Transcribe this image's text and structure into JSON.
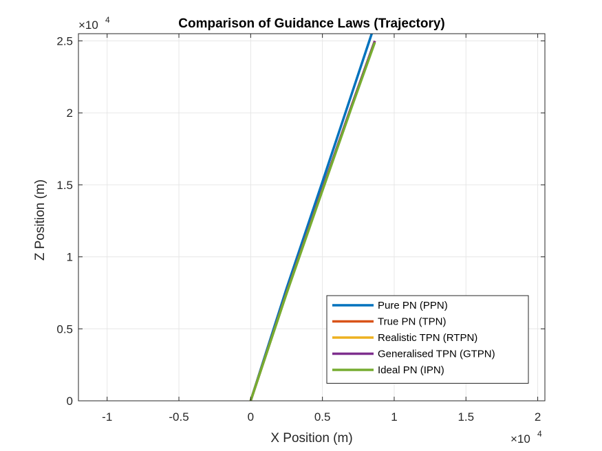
{
  "chart_data": {
    "type": "line",
    "title": "Comparison of Guidance Laws (Trajectory)",
    "xlabel": "X Position (m)",
    "ylabel": "Z Position (m)",
    "x_exponent": {
      "base": "×10",
      "power": "4"
    },
    "y_exponent": {
      "base": "×10",
      "power": "4"
    },
    "xlim": [
      -1.2,
      2.05
    ],
    "ylim": [
      0,
      2.55
    ],
    "x_ticks": [
      -1,
      -0.5,
      0,
      0.5,
      1,
      1.5,
      2
    ],
    "x_tick_labels": [
      "-1",
      "-0.5",
      "0",
      "0.5",
      "1",
      "1.5",
      "2"
    ],
    "y_ticks": [
      0,
      0.5,
      1,
      1.5,
      2,
      2.5
    ],
    "y_tick_labels": [
      "0",
      "0.5",
      "1",
      "1.5",
      "2",
      "2.5"
    ],
    "grid": true,
    "legend_position": "bottom-right",
    "series": [
      {
        "name": "Pure PN (PPN)",
        "color": "#0072BD",
        "x": [
          0,
          0.25,
          0.5,
          0.7,
          0.85
        ],
        "y": [
          0,
          0.78,
          1.52,
          2.12,
          2.57
        ]
      },
      {
        "name": "True PN (TPN)",
        "color": "#D95319",
        "x": [
          0,
          0.25,
          0.5,
          0.7,
          0.865
        ],
        "y": [
          0,
          0.75,
          1.47,
          2.04,
          2.5
        ]
      },
      {
        "name": "Realistic TPN (RTPN)",
        "color": "#EDB120",
        "x": [
          0,
          0.25,
          0.5,
          0.7,
          0.865
        ],
        "y": [
          0,
          0.75,
          1.47,
          2.04,
          2.5
        ]
      },
      {
        "name": "Generalised TPN (GTPN)",
        "color": "#7E2F8E",
        "x": [
          0,
          0.25,
          0.5,
          0.7,
          0.865
        ],
        "y": [
          0,
          0.75,
          1.47,
          2.04,
          2.5
        ]
      },
      {
        "name": "Ideal PN (IPN)",
        "color": "#77AC30",
        "x": [
          0,
          0.25,
          0.5,
          0.7,
          0.865
        ],
        "y": [
          0,
          0.745,
          1.46,
          2.03,
          2.49
        ]
      }
    ]
  }
}
